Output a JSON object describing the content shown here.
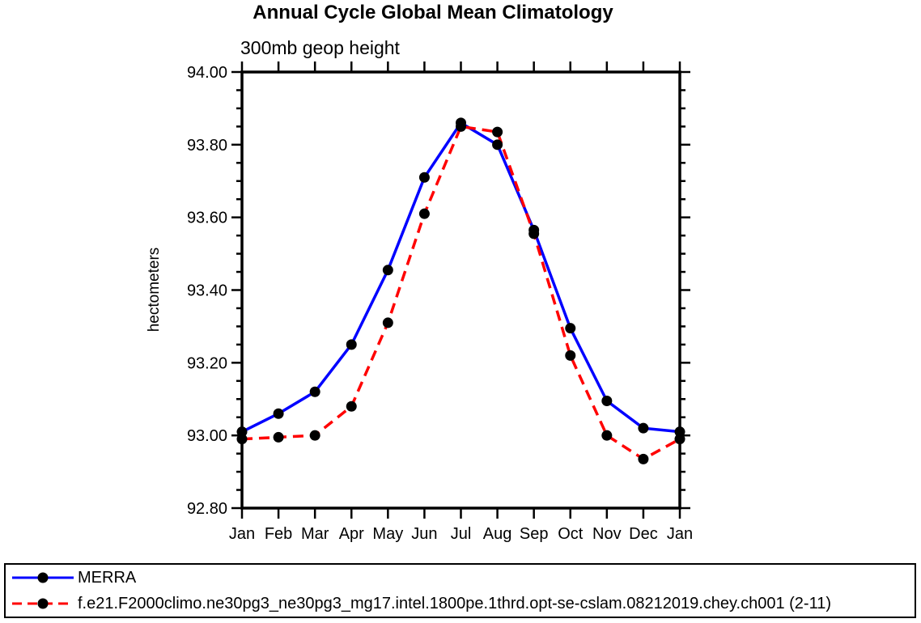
{
  "page": {
    "background_color": "#ffffff",
    "axis_color": "#000000",
    "text_color": "#000000"
  },
  "chart_data": {
    "type": "line",
    "title": "Annual Cycle Global Mean Climatology",
    "subtitle": "300mb geop height",
    "ylabel": "hectometers",
    "xlabel": "",
    "categories": [
      "Jan",
      "Feb",
      "Mar",
      "Apr",
      "May",
      "Jun",
      "Jul",
      "Aug",
      "Sep",
      "Oct",
      "Nov",
      "Dec",
      "Jan"
    ],
    "ylim": [
      92.8,
      94.0
    ],
    "ytick_labels": [
      "92.80",
      "93.00",
      "93.20",
      "93.40",
      "93.60",
      "93.80",
      "94.00"
    ],
    "ytick_step": 0.2,
    "ytick_minor_step": 0.05,
    "grid": false,
    "legend_position": "bottom-box",
    "marker": "filled-circle",
    "marker_color": "#000000",
    "series": [
      {
        "name": "MERRA",
        "color": "#0000ff",
        "line_style": "solid",
        "values": [
          93.01,
          93.06,
          93.12,
          93.25,
          93.455,
          93.71,
          93.86,
          93.8,
          93.565,
          93.295,
          93.095,
          93.02,
          93.01
        ]
      },
      {
        "name": "f.e21.F2000climo.ne30pg3_ne30pg3_mg17.intel.1800pe.1thrd.opt-se-cslam.08212019.chey.ch001 (2-11)",
        "color": "#ff0000",
        "line_style": "dashed",
        "values": [
          92.99,
          92.995,
          93.0,
          93.08,
          93.31,
          93.61,
          93.85,
          93.835,
          93.555,
          93.22,
          93.0,
          92.935,
          92.99
        ]
      }
    ]
  }
}
